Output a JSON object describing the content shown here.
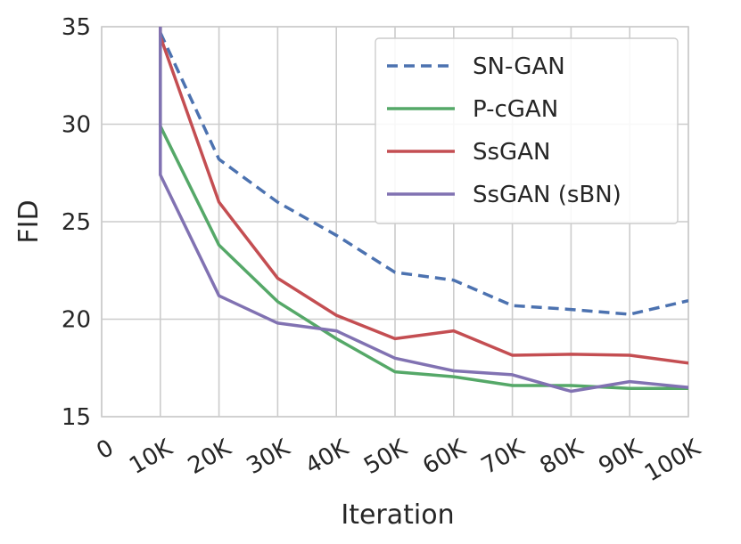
{
  "chart_data": {
    "type": "line",
    "title": "",
    "xlabel": "Iteration",
    "ylabel": "FID",
    "xlim": [
      0,
      100000
    ],
    "ylim": [
      15,
      35
    ],
    "grid": true,
    "legend_position": "top-right",
    "x_ticks": [
      {
        "value": 0,
        "label": "0"
      },
      {
        "value": 10000,
        "label": "10K"
      },
      {
        "value": 20000,
        "label": "20K"
      },
      {
        "value": 30000,
        "label": "30K"
      },
      {
        "value": 40000,
        "label": "40K"
      },
      {
        "value": 50000,
        "label": "50K"
      },
      {
        "value": 60000,
        "label": "60K"
      },
      {
        "value": 70000,
        "label": "70K"
      },
      {
        "value": 80000,
        "label": "80K"
      },
      {
        "value": 90000,
        "label": "90K"
      },
      {
        "value": 100000,
        "label": "100K"
      }
    ],
    "y_ticks": [
      {
        "value": 15,
        "label": "15"
      },
      {
        "value": 20,
        "label": "20"
      },
      {
        "value": 25,
        "label": "25"
      },
      {
        "value": 30,
        "label": "30"
      },
      {
        "value": 35,
        "label": "35"
      }
    ],
    "series": [
      {
        "name": "SN-GAN",
        "color": "#4c72b0",
        "dashed": true,
        "x": [
          10000,
          20000,
          30000,
          40000,
          50000,
          60000,
          70000,
          80000,
          90000,
          100000
        ],
        "values": [
          34.7,
          28.2,
          26.0,
          24.3,
          22.4,
          22.0,
          20.7,
          20.5,
          20.25,
          20.95
        ]
      },
      {
        "name": "P-cGAN",
        "color": "#55a868",
        "dashed": false,
        "x": [
          10000,
          10000,
          20000,
          30000,
          40000,
          50000,
          60000,
          70000,
          80000,
          90000,
          100000
        ],
        "values": [
          35.5,
          29.9,
          23.8,
          20.9,
          19.0,
          17.3,
          17.05,
          16.6,
          16.6,
          16.45,
          16.45
        ]
      },
      {
        "name": "SsGAN",
        "color": "#c44e52",
        "dashed": false,
        "x": [
          10000,
          10000,
          20000,
          30000,
          40000,
          50000,
          60000,
          70000,
          80000,
          90000,
          100000
        ],
        "values": [
          35.5,
          34.5,
          26.0,
          22.1,
          20.2,
          19.0,
          19.4,
          18.15,
          18.2,
          18.15,
          17.75
        ]
      },
      {
        "name": "SsGAN (sBN)",
        "color": "#8172b2",
        "dashed": false,
        "x": [
          10000,
          10000,
          20000,
          30000,
          40000,
          50000,
          60000,
          70000,
          80000,
          90000,
          100000
        ],
        "values": [
          35.5,
          27.4,
          21.2,
          19.8,
          19.4,
          18.0,
          17.35,
          17.15,
          16.3,
          16.8,
          16.5
        ]
      }
    ]
  }
}
